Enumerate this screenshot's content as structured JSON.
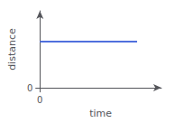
{
  "chart_data": {
    "type": "line",
    "x": [
      0,
      0.8
    ],
    "values": [
      0.6,
      0.6
    ],
    "xlabel": "time",
    "ylabel": "distance",
    "xlim": [
      0,
      1.0
    ],
    "ylim": [
      0,
      1.0
    ],
    "xticks": [
      0
    ],
    "yticks": [
      0
    ],
    "grid": false
  }
}
